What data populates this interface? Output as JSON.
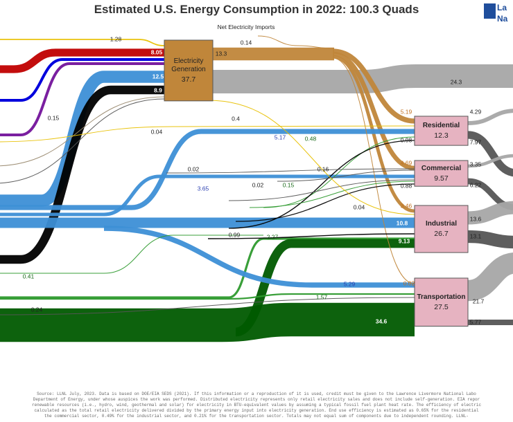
{
  "chart_data": {
    "type": "sankey",
    "title": "Estimated U.S. Energy Consumption in 2022: 100.3 Quads",
    "logo": [
      "La",
      "Na"
    ],
    "imports_label": "Net Electricity Imports",
    "node_color": "#c0863a",
    "sector_color": "#e6b3c1",
    "nodes": [
      {
        "label": "Electricity Generation",
        "value": 37.7
      },
      {
        "label": "Residential",
        "value": 12.3
      },
      {
        "label": "Commercial",
        "value": 9.57
      },
      {
        "label": "Industrial",
        "value": 26.7
      },
      {
        "label": "Transportation",
        "value": 27.5
      }
    ],
    "links": [
      {
        "value": 1.28,
        "color": "#e8c000"
      },
      {
        "value": 8.05,
        "color": "#c00000"
      },
      {
        "value": 12.5,
        "color": "#3d8fd6"
      },
      {
        "value": 8.9,
        "color": "#000000"
      },
      {
        "value": 13.3,
        "color": "#c0863a"
      },
      {
        "value": 0.14,
        "color": "#c0863a"
      },
      {
        "value": 24.3,
        "color": "#a6a6a6"
      },
      {
        "value": 5.19,
        "color": "#c0863a"
      },
      {
        "value": 4.69,
        "color": "#c0863a"
      },
      {
        "value": 3.46,
        "color": "#c0863a"
      },
      {
        "value": 0.02,
        "color": "#c0863a"
      },
      {
        "value": 0.15,
        "color": "#9a8a70"
      },
      {
        "value": 0.04,
        "color": "#555555"
      },
      {
        "value": 0.4,
        "color": "#e8c000"
      },
      {
        "value": 5.17,
        "color": "#3d8fd6"
      },
      {
        "value": 0.48,
        "color": "#2e9a2e"
      },
      {
        "value": 0.98,
        "color": "#000000"
      },
      {
        "value": 4.29,
        "color": "#a6a6a6"
      },
      {
        "value": 7.97,
        "color": "#555555"
      },
      {
        "value": 0.02,
        "color": "#555555"
      },
      {
        "value": 0.16,
        "color": "#555555"
      },
      {
        "value": 3.65,
        "color": "#3d8fd6"
      },
      {
        "value": 0.02,
        "color": "#555555"
      },
      {
        "value": 0.15,
        "color": "#2e9a2e"
      },
      {
        "value": 0.88,
        "color": "#000000"
      },
      {
        "value": 3.35,
        "color": "#a6a6a6"
      },
      {
        "value": 6.22,
        "color": "#555555"
      },
      {
        "value": 0.04,
        "color": "#e8c000"
      },
      {
        "value": 10.8,
        "color": "#3d8fd6"
      },
      {
        "value": 0.99,
        "color": "#000000"
      },
      {
        "value": 2.27,
        "color": "#2e9a2e"
      },
      {
        "value": 9.13,
        "color": "#005a00"
      },
      {
        "value": 13.6,
        "color": "#a6a6a6"
      },
      {
        "value": 13.1,
        "color": "#555555"
      },
      {
        "value": 0.41,
        "color": "#2e9a2e"
      },
      {
        "value": 5.29,
        "color": "#3d8fd6"
      },
      {
        "value": 1.57,
        "color": "#2e9a2e"
      },
      {
        "value": 34.6,
        "color": "#005a00"
      },
      {
        "value": 0.24,
        "color": "#555555"
      },
      {
        "value": 21.7,
        "color": "#a6a6a6"
      },
      {
        "value": 5.77,
        "color": "#555555"
      }
    ],
    "footnote": [
      "Source: LLNL July, 2023. Data is based on DOE/EIA SEDS (2021). If this information or a reproduction of it is used, credit must be given to the Lawrence Livermore National Labo",
      "Department of Energy, under whose auspices the work was performed. Distributed electricity represents only retail electricity sales and does not include self-generation. EIA repor",
      "renewable resources (i.e., hydro, wind, geothermal and solar) for electricity in BTU-equivalent values by assuming a typical fossil fuel plant heat rate. The efficiency of electric",
      "calculated as the total retail electricity delivered divided by the primary energy input into electricity generation. End use efficiency is estimated as 0.65% for the residential",
      "the commercial sector, 0.49% for the industrial sector, and 0.21% for the transportation sector. Totals may not equal sum of components due to independent rounding. LLNL-"
    ]
  }
}
